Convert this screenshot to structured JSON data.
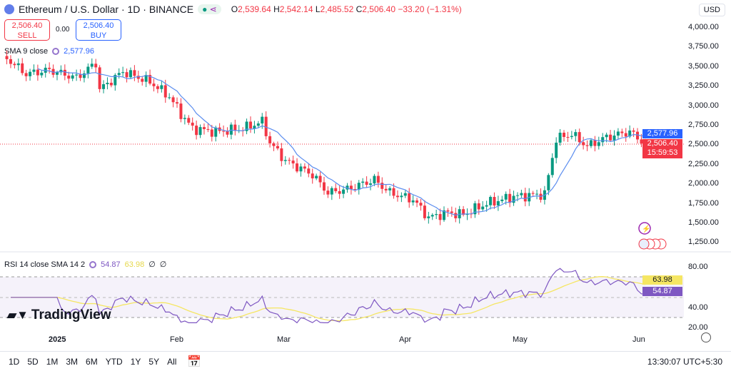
{
  "header": {
    "title": "Ethereum / U.S. Dollar · 1D · BINANCE",
    "open_label": "O",
    "open": "2,539.64",
    "high_label": "H",
    "high": "2,542.14",
    "low_label": "L",
    "low": "2,485.52",
    "close_label": "C",
    "close": "2,506.40",
    "change": "−33.20 (−1.31%)"
  },
  "trade": {
    "sell_price": "2,506.40",
    "sell_label": "SELL",
    "spread": "0.00",
    "buy_price": "2,506.40",
    "buy_label": "BUY"
  },
  "sma": {
    "label": "SMA 9 close",
    "value": "2,577.96"
  },
  "rsi": {
    "label": "RSI 14 close SMA 14 2",
    "value": "54.87",
    "sma_value": "63.98",
    "extra1": "∅",
    "extra2": "∅",
    "ticks": [
      "80.00",
      "40.00",
      "20.00"
    ]
  },
  "currency": "USD",
  "price_ticks": [
    "4,000.00",
    "3,750.00",
    "3,500.00",
    "3,250.00",
    "3,000.00",
    "2,750.00",
    "2,500.00",
    "2,250.00",
    "2,000.00",
    "1,750.00",
    "1,500.00",
    "1,250.00"
  ],
  "price_tags": {
    "sma": "2,577.96",
    "last": "2,506.40",
    "countdown": "15:59:53"
  },
  "time_labels": [
    "2025",
    "Feb",
    "Mar",
    "Apr",
    "May",
    "Jun"
  ],
  "ranges": [
    "1D",
    "5D",
    "1M",
    "3M",
    "6M",
    "YTD",
    "1Y",
    "5Y",
    "All"
  ],
  "clock": "13:30:07 UTC+5:30",
  "watermark": "TradingView",
  "colors": {
    "up": "#089981",
    "down": "#f23645",
    "sma": "#2962ff",
    "rsi": "#7e57c2",
    "rsi_sma": "#f5e663"
  },
  "chart_data": {
    "type": "candlestick",
    "ylim": [
      1250,
      4000
    ],
    "rsi_ylim": [
      20,
      80
    ],
    "keypoints": [
      [
        -13,
        3600
      ],
      [
        -8,
        3400
      ],
      [
        -2,
        3450
      ],
      [
        5,
        3350
      ],
      [
        10,
        3540
      ],
      [
        11,
        3200
      ],
      [
        17,
        3430
      ],
      [
        24,
        3300
      ],
      [
        29,
        3110
      ],
      [
        32,
        2890
      ],
      [
        35,
        2700
      ],
      [
        41,
        2660
      ],
      [
        48,
        2700
      ],
      [
        53,
        2790
      ],
      [
        55,
        2520
      ],
      [
        59,
        2290
      ],
      [
        66,
        2110
      ],
      [
        70,
        1880
      ],
      [
        75,
        1925
      ],
      [
        82,
        2045
      ],
      [
        86,
        1880
      ],
      [
        92,
        1790
      ],
      [
        96,
        1560
      ],
      [
        101,
        1625
      ],
      [
        105,
        1600
      ],
      [
        111,
        1740
      ],
      [
        118,
        1830
      ],
      [
        126,
        1860
      ],
      [
        129,
        2570
      ],
      [
        133,
        2630
      ],
      [
        137,
        2475
      ],
      [
        142,
        2590
      ],
      [
        148,
        2660
      ],
      [
        152,
        2506.4
      ]
    ]
  }
}
